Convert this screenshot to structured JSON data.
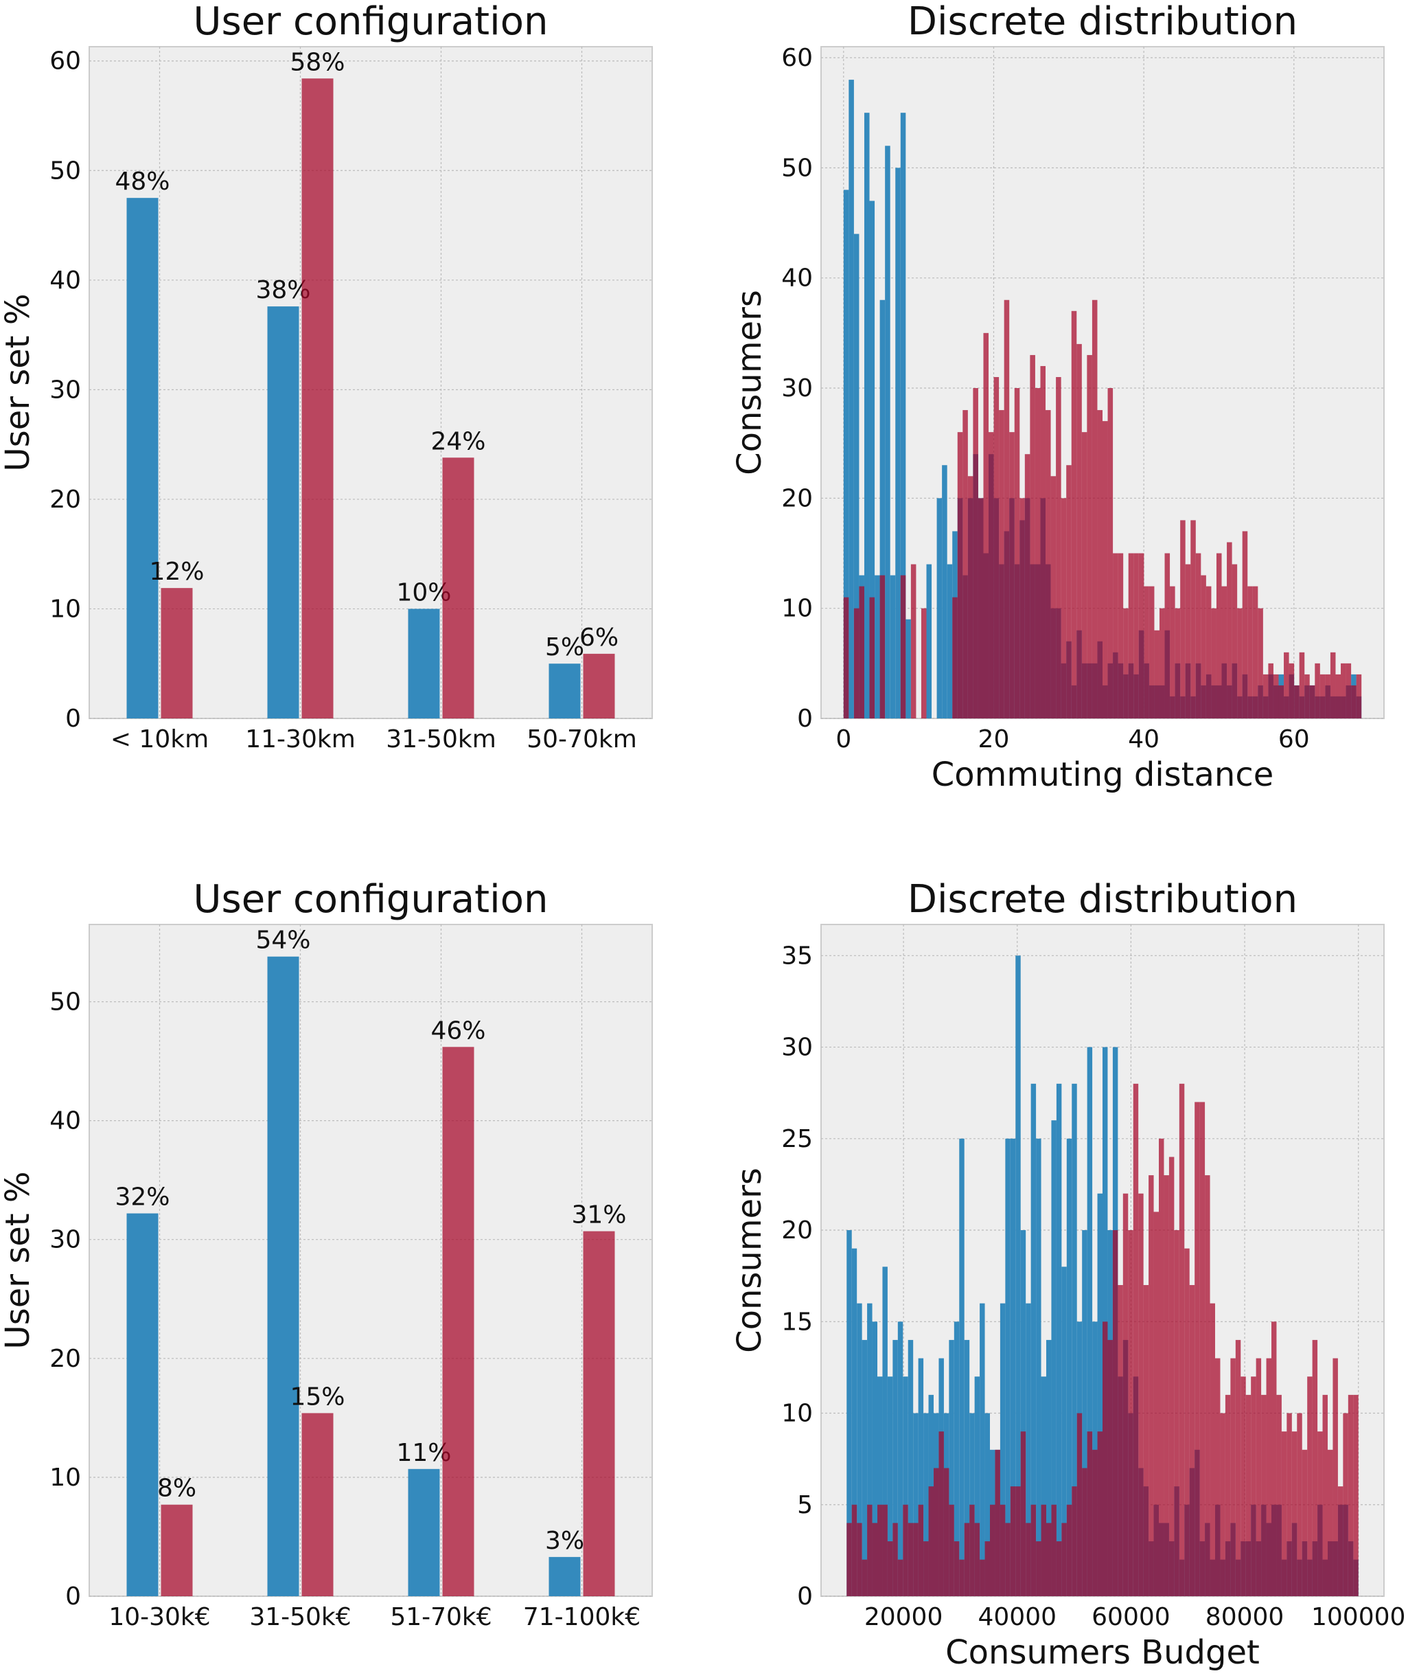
{
  "colors": {
    "blue": "#348abd",
    "red": "#a60628",
    "plot_bg": "#eeeeee",
    "grid": "#bbbbbb"
  },
  "chart_data": [
    {
      "type": "bar",
      "title": "User configuration",
      "xlabel": "",
      "ylabel": "User set %",
      "categories": [
        "< 10km",
        "11-30km",
        "31-50km",
        "50-70km"
      ],
      "series": [
        {
          "name": "blue",
          "values": [
            47.5,
            37.6,
            10,
            5
          ],
          "labels": [
            "48%",
            "38%",
            "10%",
            "5%"
          ]
        },
        {
          "name": "red",
          "values": [
            11.9,
            58.4,
            23.8,
            5.9
          ],
          "labels": [
            "12%",
            "58%",
            "24%",
            "6%"
          ]
        }
      ],
      "ylim": [
        0,
        61.3
      ],
      "yticks": [
        0,
        10,
        20,
        30,
        40,
        50,
        60
      ],
      "grid": true
    },
    {
      "type": "histogram",
      "title": "Discrete distribution",
      "xlabel": "Commuting distance",
      "ylabel": "Consumers",
      "xlim": [
        -3,
        72
      ],
      "ylim": [
        0,
        61
      ],
      "xticks": [
        0,
        20,
        40,
        60
      ],
      "yticks": [
        0,
        10,
        20,
        30,
        40,
        50,
        60
      ],
      "bin_start": 0,
      "bin_width": 0.69,
      "series": [
        {
          "name": "blue",
          "counts": [
            48,
            58,
            44,
            13,
            55,
            47,
            13,
            38,
            52,
            13,
            50,
            55,
            9,
            0,
            0,
            0,
            14,
            0,
            20,
            23,
            14,
            17,
            20,
            13,
            20,
            24,
            20,
            15,
            24,
            20,
            14,
            17,
            20,
            14,
            18,
            20,
            14,
            14,
            20,
            14,
            10,
            10,
            5,
            7,
            3,
            8,
            5,
            5,
            5,
            7,
            3,
            5,
            6,
            5,
            4,
            5,
            4,
            8,
            5,
            3,
            3,
            3,
            8,
            2,
            5,
            2,
            5,
            2,
            5,
            3,
            4,
            3,
            3,
            5,
            3,
            5,
            2,
            4,
            2,
            2,
            3,
            2,
            4,
            3,
            4,
            2,
            4,
            3,
            2,
            3,
            3,
            2,
            2,
            3,
            2,
            2,
            2,
            3,
            4,
            2
          ]
        },
        {
          "name": "red",
          "counts": [
            11,
            0,
            10,
            12,
            0,
            11,
            0,
            13,
            0,
            0,
            0,
            13,
            0,
            14,
            0,
            10,
            0,
            0,
            0,
            0,
            0,
            11,
            26,
            28,
            22,
            30,
            20,
            35,
            26,
            31,
            28,
            38,
            26,
            30,
            20,
            24,
            33,
            30,
            32,
            28,
            22,
            31,
            20,
            23,
            37,
            34,
            26,
            33,
            38,
            28,
            27,
            30,
            15,
            15,
            10,
            15,
            15,
            15,
            12,
            12,
            8,
            10,
            15,
            12,
            10,
            18,
            14,
            18,
            15,
            13,
            12,
            10,
            15,
            12,
            16,
            14,
            10,
            17,
            12,
            12,
            10,
            4,
            5,
            4,
            3,
            6,
            5,
            3,
            6,
            4,
            3,
            5,
            4,
            4,
            6,
            4,
            5,
            5,
            3,
            4
          ]
        }
      ],
      "grid": true
    },
    {
      "type": "bar",
      "title": "User configuration",
      "xlabel": "",
      "ylabel": "User set %",
      "categories": [
        "10-30k€",
        "31-50k€",
        "51-70k€",
        "71-100k€"
      ],
      "series": [
        {
          "name": "blue",
          "values": [
            32.2,
            53.8,
            10.7,
            3.3
          ],
          "labels": [
            "32%",
            "54%",
            "11%",
            "3%"
          ]
        },
        {
          "name": "red",
          "values": [
            7.7,
            15.4,
            46.2,
            30.7
          ],
          "labels": [
            "8%",
            "15%",
            "46%",
            "31%"
          ]
        }
      ],
      "ylim": [
        0,
        56.5
      ],
      "yticks": [
        0,
        10,
        20,
        30,
        40,
        50
      ],
      "grid": true
    },
    {
      "type": "histogram",
      "title": "Discrete distribution",
      "xlabel": "Consumers Budget",
      "ylabel": "Consumers",
      "xlim": [
        5500,
        104500
      ],
      "ylim": [
        0,
        36.7
      ],
      "xticks": [
        20000,
        40000,
        60000,
        80000,
        100000
      ],
      "yticks": [
        0,
        5,
        10,
        15,
        20,
        25,
        30,
        35
      ],
      "bin_start": 10000,
      "bin_width": 900,
      "series": [
        {
          "name": "blue",
          "counts": [
            20,
            19,
            16,
            14,
            16,
            15,
            12,
            18,
            12,
            14,
            15,
            12,
            14,
            10,
            13,
            10,
            11,
            10,
            13,
            10,
            14,
            15,
            25,
            14,
            10,
            12,
            16,
            10,
            8,
            8,
            16,
            25,
            25,
            35,
            20,
            16,
            28,
            25,
            12,
            14,
            26,
            28,
            18,
            25,
            28,
            15,
            20,
            30,
            15,
            22,
            30,
            20,
            30,
            12,
            14,
            10,
            12,
            7,
            6,
            3,
            5,
            4,
            4,
            3,
            6,
            2,
            5,
            7,
            8,
            3,
            4,
            2,
            5,
            2,
            3,
            4,
            2,
            3,
            3,
            5,
            3,
            5,
            4,
            5,
            5,
            2,
            3,
            4,
            2,
            3,
            2,
            3,
            5,
            2,
            3,
            3,
            5,
            5,
            3,
            2
          ]
        },
        {
          "name": "red",
          "counts": [
            4,
            5,
            4,
            2,
            5,
            4,
            5,
            5,
            3,
            4,
            2,
            5,
            4,
            4,
            5,
            3,
            6,
            7,
            9,
            7,
            5,
            3,
            2,
            4,
            5,
            4,
            2,
            3,
            5,
            8,
            5,
            4,
            6,
            6,
            9,
            4,
            5,
            3,
            5,
            4,
            5,
            3,
            4,
            5,
            6,
            10,
            7,
            9,
            8,
            9,
            15,
            14,
            20,
            17,
            22,
            20,
            28,
            22,
            17,
            23,
            21,
            25,
            23,
            24,
            20,
            28,
            19,
            17,
            27,
            27,
            23,
            16,
            13,
            10,
            11,
            13,
            14,
            12,
            11,
            12,
            13,
            11,
            13,
            15,
            11,
            9,
            10,
            9,
            10,
            8,
            12,
            14,
            9,
            11,
            8,
            13,
            6,
            10,
            11,
            11
          ]
        }
      ],
      "grid": true
    }
  ]
}
